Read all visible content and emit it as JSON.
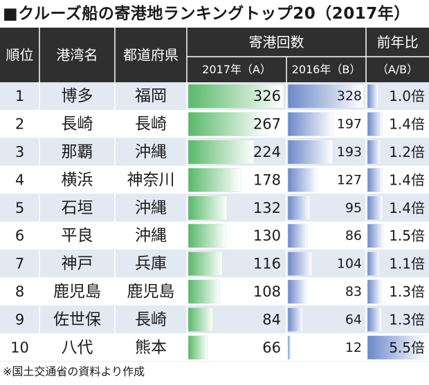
{
  "title": "■クルーズ船の寄港地ランキングトップ20（2017年）",
  "source": "※国土交通省の資料より作成",
  "colors": {
    "header_bg": "#2f2f2f",
    "header_text": "#ffffff",
    "row_alt_bg": "#e3e9f2",
    "row_bg": "#ffffff",
    "bar_green": "#59b86a",
    "bar_blue": "#6b88c9",
    "grid": "#ffffff"
  },
  "chart_data": {
    "type": "table",
    "columns": {
      "rank": "順位",
      "port": "港湾名",
      "prefecture": "都道府県",
      "calls_group": "寄港回数",
      "calls_2017": "2017年（A）",
      "calls_2016": "2016年（B）",
      "ratio_group": "前年比",
      "ratio_sub": "（A/B）"
    },
    "rows": [
      {
        "rank": "1",
        "port": "博多",
        "prefecture": "福岡",
        "calls_2017": 326,
        "calls_2016": 328,
        "ratio": 1.0,
        "ratio_label": "1.0倍"
      },
      {
        "rank": "2",
        "port": "長崎",
        "prefecture": "長崎",
        "calls_2017": 267,
        "calls_2016": 197,
        "ratio": 1.4,
        "ratio_label": "1.4倍"
      },
      {
        "rank": "3",
        "port": "那覇",
        "prefecture": "沖縄",
        "calls_2017": 224,
        "calls_2016": 193,
        "ratio": 1.2,
        "ratio_label": "1.2倍"
      },
      {
        "rank": "4",
        "port": "横浜",
        "prefecture": "神奈川",
        "calls_2017": 178,
        "calls_2016": 127,
        "ratio": 1.4,
        "ratio_label": "1.4倍"
      },
      {
        "rank": "5",
        "port": "石垣",
        "prefecture": "沖縄",
        "calls_2017": 132,
        "calls_2016": 95,
        "ratio": 1.4,
        "ratio_label": "1.4倍"
      },
      {
        "rank": "6",
        "port": "平良",
        "prefecture": "沖縄",
        "calls_2017": 130,
        "calls_2016": 86,
        "ratio": 1.5,
        "ratio_label": "1.5倍"
      },
      {
        "rank": "7",
        "port": "神戸",
        "prefecture": "兵庫",
        "calls_2017": 116,
        "calls_2016": 104,
        "ratio": 1.1,
        "ratio_label": "1.1倍"
      },
      {
        "rank": "8",
        "port": "鹿児島",
        "prefecture": "鹿児島",
        "calls_2017": 108,
        "calls_2016": 83,
        "ratio": 1.3,
        "ratio_label": "1.3倍"
      },
      {
        "rank": "9",
        "port": "佐世保",
        "prefecture": "長崎",
        "calls_2017": 84,
        "calls_2016": 64,
        "ratio": 1.3,
        "ratio_label": "1.3倍"
      },
      {
        "rank": "10",
        "port": "八代",
        "prefecture": "熊本",
        "calls_2017": 66,
        "calls_2016": 12,
        "ratio": 5.5,
        "ratio_label": "5.5倍"
      }
    ],
    "bar_max_calls": 326,
    "bar_max_ratio": 5.5
  }
}
